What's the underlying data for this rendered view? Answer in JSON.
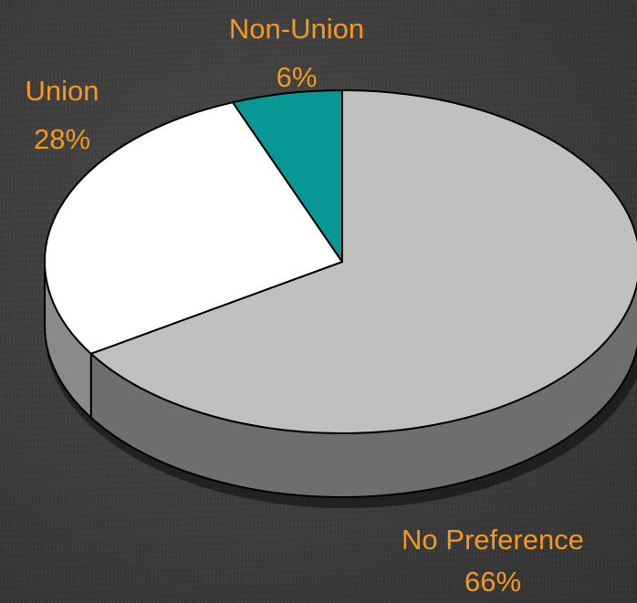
{
  "chart_data": {
    "type": "pie",
    "style": "3d",
    "start": "top",
    "direction": "clockwise",
    "label_color": "#f29a1f",
    "slices": [
      {
        "label": "No Preference",
        "percent_label": "66%",
        "value": 66,
        "color": "#c0c0c0",
        "side_color": "#6e6e6e"
      },
      {
        "label": "Union",
        "percent_label": "28%",
        "value": 28,
        "color": "#ffffff",
        "side_color": "#8a8a8a"
      },
      {
        "label": "Non-Union",
        "percent_label": "6%",
        "value": 6,
        "color": "#079895",
        "side_color": "#055f5d"
      }
    ]
  }
}
